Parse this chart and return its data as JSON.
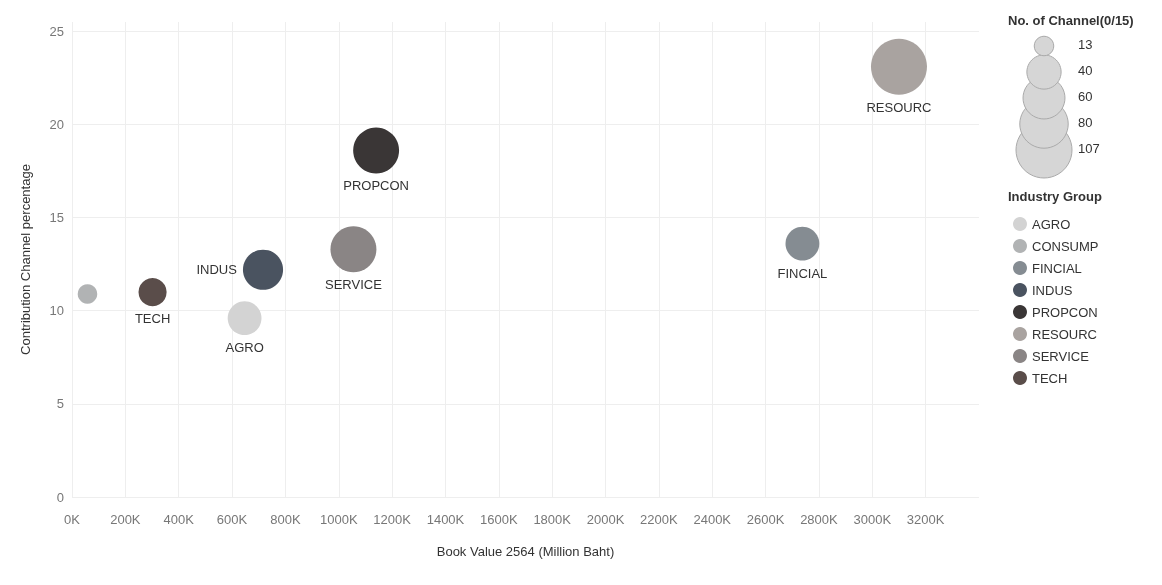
{
  "chart_data": {
    "type": "bubble",
    "xlabel": "Book Value 2564 (Million Baht)",
    "ylabel": "Contribution Channel percentage",
    "legend_title": "Industry Group",
    "annotations": [
      "No. of Channel(0/15)"
    ],
    "series": [
      {
        "name": "AGRO",
        "color": "#d3d3d3",
        "x": [
          647000
        ],
        "values": [
          9.6
        ],
        "sizes": [
          39
        ]
      },
      {
        "name": "CONSUMP",
        "color": "#b1b3b4",
        "x": [
          58000
        ],
        "values": [
          10.9
        ],
        "sizes": [
          13
        ],
        "data_labels": false
      },
      {
        "name": "FINCIAL",
        "color": "#858c92",
        "x": [
          2738000
        ],
        "values": [
          13.6
        ],
        "sizes": [
          39
        ]
      },
      {
        "name": "INDUS",
        "color": "#4a5360",
        "x": [
          716000
        ],
        "values": [
          12.2
        ],
        "sizes": [
          55
        ]
      },
      {
        "name": "PROPCON",
        "color": "#3a3636",
        "x": [
          1140000
        ],
        "values": [
          18.6
        ],
        "sizes": [
          72
        ]
      },
      {
        "name": "RESOURC",
        "color": "#a9a3a0",
        "x": [
          3100000
        ],
        "values": [
          23.1
        ],
        "sizes": [
          107
        ]
      },
      {
        "name": "SERVICE",
        "color": "#8a8585",
        "x": [
          1055000
        ],
        "values": [
          13.3
        ],
        "sizes": [
          72
        ]
      },
      {
        "name": "TECH",
        "color": "#5a4d4a",
        "x": [
          302000
        ],
        "values": [
          11.0
        ],
        "sizes": [
          27
        ]
      }
    ],
    "size_legend": [
      13,
      40,
      60,
      80,
      107
    ],
    "xlim": [
      0,
      3400000
    ],
    "xticks": [
      {
        "value": 0,
        "label": "0K"
      },
      {
        "value": 200000,
        "label": "200K"
      },
      {
        "value": 400000,
        "label": "400K"
      },
      {
        "value": 600000,
        "label": "600K"
      },
      {
        "value": 800000,
        "label": "800K"
      },
      {
        "value": 1000000,
        "label": "1000K"
      },
      {
        "value": 1200000,
        "label": "1200K"
      },
      {
        "value": 1400000,
        "label": "1400K"
      },
      {
        "value": 1600000,
        "label": "1600K"
      },
      {
        "value": 1800000,
        "label": "1800K"
      },
      {
        "value": 2000000,
        "label": "2000K"
      },
      {
        "value": 2200000,
        "label": "2200K"
      },
      {
        "value": 2400000,
        "label": "2400K"
      },
      {
        "value": 2600000,
        "label": "2600K"
      },
      {
        "value": 2800000,
        "label": "2800K"
      },
      {
        "value": 3000000,
        "label": "3000K"
      },
      {
        "value": 3200000,
        "label": "3200K"
      }
    ],
    "ylim": [
      0,
      25.5
    ],
    "yticks": [
      0,
      5,
      10,
      15,
      20,
      25
    ],
    "grid": true,
    "legend": "right",
    "marker": "circle",
    "data_labels": false
  }
}
